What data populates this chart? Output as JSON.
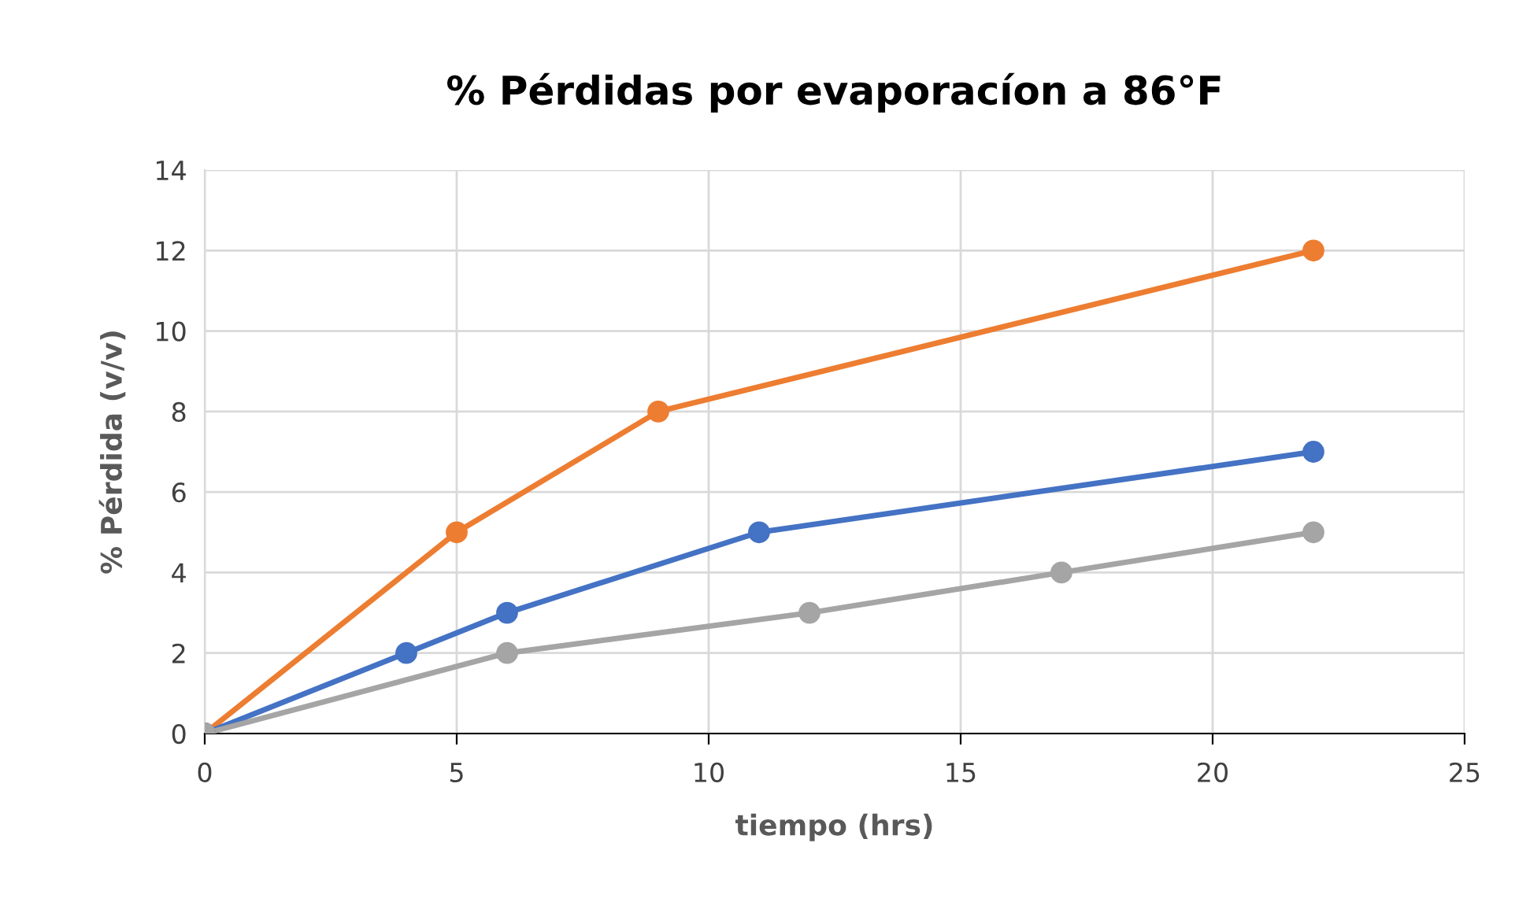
{
  "chart_data": {
    "type": "line",
    "title": "% Pérdidas por evaporacíon a 86°F",
    "xlabel": "tiempo (hrs)",
    "ylabel": "% Pérdida (v/v)",
    "series": [
      {
        "color": "#ed7d31",
        "x": [
          0,
          5,
          9,
          22
        ],
        "values": [
          0,
          5,
          8,
          12
        ]
      },
      {
        "color": "#4472c4",
        "x": [
          0,
          4,
          6,
          11,
          22
        ],
        "values": [
          0,
          2,
          3,
          5,
          7
        ]
      },
      {
        "color": "#a5a5a5",
        "x": [
          0,
          6,
          12,
          17,
          22
        ],
        "values": [
          0,
          2,
          3,
          4,
          5
        ]
      }
    ],
    "xlim": [
      0,
      25
    ],
    "xticks": [
      0,
      5,
      10,
      15,
      20,
      25
    ],
    "ylim": [
      0,
      14
    ],
    "yticks": [
      0,
      2,
      4,
      6,
      8,
      10,
      12,
      14
    ],
    "grid": true,
    "marker": "circle",
    "line_style": "solid"
  }
}
